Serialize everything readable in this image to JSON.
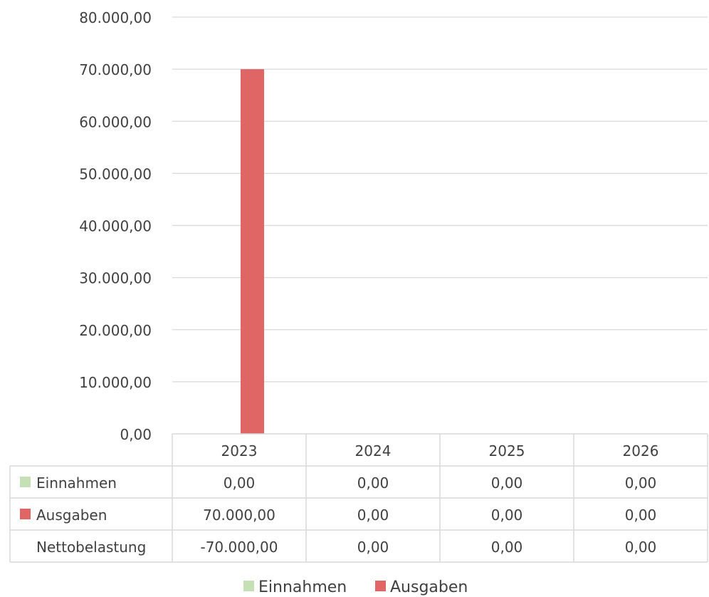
{
  "chart_data": {
    "type": "bar",
    "categories": [
      "2023",
      "2024",
      "2025",
      "2026"
    ],
    "series": [
      {
        "name": "Einnahmen",
        "values": [
          0,
          0,
          0,
          0
        ],
        "color": "#c5e0b4"
      },
      {
        "name": "Ausgaben",
        "values": [
          70000,
          0,
          0,
          0
        ],
        "color": "#e06666"
      }
    ],
    "ylim": [
      0,
      80000
    ],
    "y_ticks": [
      0,
      10000,
      20000,
      30000,
      40000,
      50000,
      60000,
      70000,
      80000
    ],
    "y_tick_labels": [
      "0,00",
      "10.000,00",
      "20.000,00",
      "30.000,00",
      "40.000,00",
      "50.000,00",
      "60.000,00",
      "70.000,00",
      "80.000,00"
    ],
    "grid": true,
    "legend_position": "bottom",
    "data_table": {
      "rows": [
        {
          "label": "Einnahmen",
          "key_color": "#c5e0b4",
          "cells": [
            "0,00",
            "0,00",
            "0,00",
            "0,00"
          ]
        },
        {
          "label": "Ausgaben",
          "key_color": "#e06666",
          "cells": [
            "70.000,00",
            "0,00",
            "0,00",
            "0,00"
          ]
        },
        {
          "label": "Nettobelastung",
          "key_color": "",
          "cells": [
            "-70.000,00",
            "0,00",
            "0,00",
            "0,00"
          ]
        }
      ]
    }
  }
}
